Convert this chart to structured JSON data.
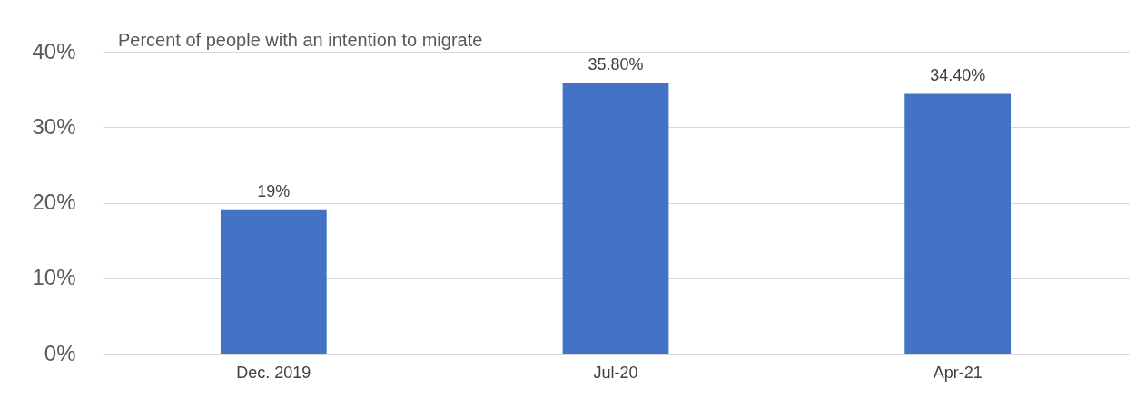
{
  "chart_data": {
    "type": "bar",
    "title": "Percent of people with an intention to migrate",
    "categories": [
      "Dec. 2019",
      "Jul-20",
      "Apr-21"
    ],
    "values": [
      19,
      35.8,
      34.4
    ],
    "value_labels": [
      "19%",
      "35.80%",
      "34.40%"
    ],
    "color": "#4472c4",
    "ylim": [
      0,
      40
    ],
    "yticks": [
      {
        "value": 0,
        "label": "0%"
      },
      {
        "value": 10,
        "label": "10%"
      },
      {
        "value": 20,
        "label": "20%"
      },
      {
        "value": 30,
        "label": "30%"
      },
      {
        "value": 40,
        "label": "40%"
      }
    ],
    "grid": "y"
  }
}
